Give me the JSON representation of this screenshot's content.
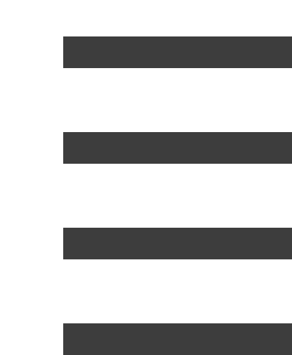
{
  "icon": {
    "name": "hamburger-menu-icon",
    "bar_count": 4,
    "color": "#3d3d3d",
    "background": "#ffffff"
  }
}
